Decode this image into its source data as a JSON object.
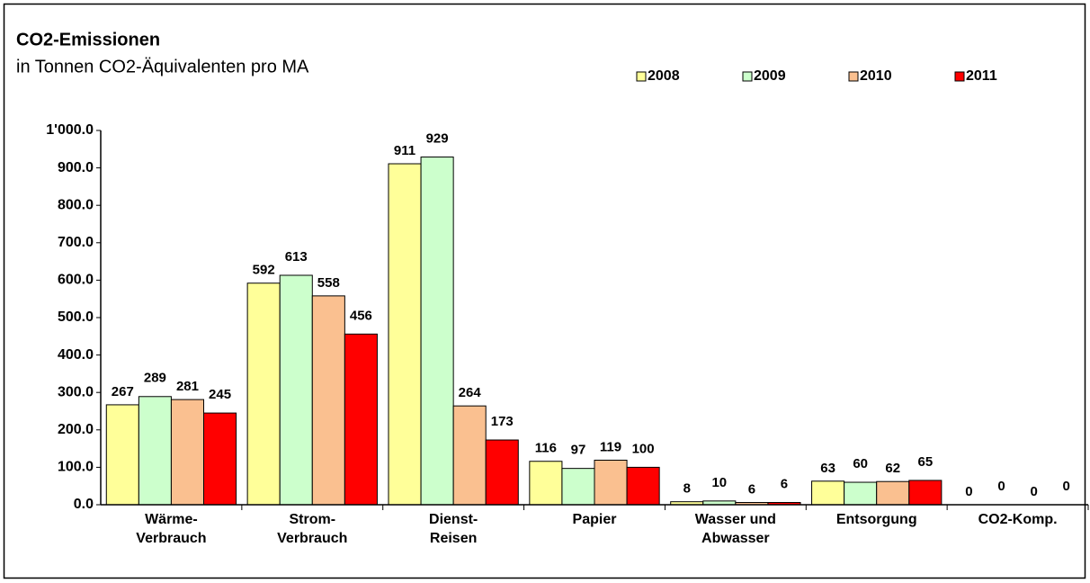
{
  "chart_data": {
    "type": "bar",
    "title": "CO2-Emissionen",
    "subtitle": "in Tonnen CO2-Äquivalenten pro MA",
    "categories": [
      [
        "Wärme-",
        "Verbrauch"
      ],
      [
        "Strom-",
        "Verbrauch"
      ],
      [
        "Dienst-",
        "Reisen"
      ],
      [
        "Papier"
      ],
      [
        "Wasser und",
        "Abwasser"
      ],
      [
        "Entsorgung"
      ],
      [
        "CO2-Komp."
      ]
    ],
    "series": [
      {
        "name": "2008",
        "color": "#ffff99",
        "values": [
          267,
          592,
          911,
          116,
          8,
          63,
          0
        ]
      },
      {
        "name": "2009",
        "color": "#ccffcc",
        "values": [
          289,
          613,
          929,
          97,
          10,
          60,
          0
        ]
      },
      {
        "name": "2010",
        "color": "#fac090",
        "values": [
          281,
          558,
          264,
          119,
          6,
          62,
          0
        ]
      },
      {
        "name": "2011",
        "color": "#ff0000",
        "values": [
          245,
          456,
          173,
          100,
          6,
          65,
          0
        ]
      }
    ],
    "ylim": [
      0,
      1000
    ],
    "yticks": [
      {
        "value": 0,
        "label": "0.0"
      },
      {
        "value": 100,
        "label": "100.0"
      },
      {
        "value": 200,
        "label": "200.0"
      },
      {
        "value": 300,
        "label": "300.0"
      },
      {
        "value": 400,
        "label": "400.0"
      },
      {
        "value": 500,
        "label": "500.0"
      },
      {
        "value": 600,
        "label": "600.0"
      },
      {
        "value": 700,
        "label": "700.0"
      },
      {
        "value": 800,
        "label": "800.0"
      },
      {
        "value": 900,
        "label": "900.0"
      },
      {
        "value": 1000,
        "label": "1'000.0"
      }
    ],
    "legend": "top-right",
    "grid": false
  }
}
